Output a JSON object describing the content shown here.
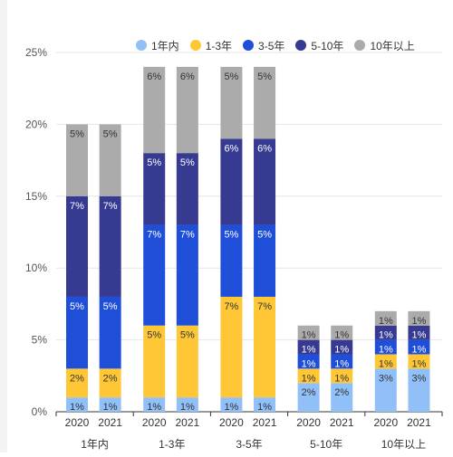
{
  "chart_data": {
    "type": "bar",
    "stacked": true,
    "groups": [
      {
        "label": "1年内",
        "years": [
          "2020",
          "2021"
        ]
      },
      {
        "label": "1-3年",
        "years": [
          "2020",
          "2021"
        ]
      },
      {
        "label": "3-5年",
        "years": [
          "2020",
          "2021"
        ]
      },
      {
        "label": "5-10年",
        "years": [
          "2020",
          "2021"
        ]
      },
      {
        "label": "10年以上",
        "years": [
          "2020",
          "2021"
        ]
      }
    ],
    "series": [
      {
        "name": "1年内",
        "color": "#91bff8",
        "values": [
          1,
          1,
          1,
          1,
          1,
          1,
          2,
          2,
          3,
          3
        ],
        "labels": [
          "1%",
          "1%",
          "1%",
          "1%",
          "1%",
          "1%",
          "2%",
          "2%",
          "3%",
          "3%"
        ],
        "label_color": "#333333"
      },
      {
        "name": "1-3年",
        "color": "#ffc736",
        "values": [
          2,
          2,
          5,
          5,
          7,
          7,
          1,
          1,
          1,
          1
        ],
        "labels": [
          "2%",
          "2%",
          "5%",
          "5%",
          "7%",
          "7%",
          "1%",
          "1%",
          "1%",
          "1%"
        ],
        "label_color": "#333333"
      },
      {
        "name": "3-5年",
        "color": "#1f4fd9",
        "values": [
          5,
          5,
          7,
          7,
          5,
          5,
          1,
          1,
          1,
          1
        ],
        "labels": [
          "5%",
          "5%",
          "7%",
          "7%",
          "5%",
          "5%",
          "1%",
          "1%",
          "1%",
          "1%"
        ],
        "label_color": "#ffffff"
      },
      {
        "name": "5-10年",
        "color": "#363a91",
        "values": [
          7,
          7,
          5,
          5,
          6,
          6,
          1,
          1,
          1,
          1
        ],
        "labels": [
          "7%",
          "7%",
          "5%",
          "5%",
          "6%",
          "6%",
          "1%",
          "1%",
          "1%",
          "1%"
        ],
        "label_color": "#ffffff"
      },
      {
        "name": "10年以上",
        "color": "#ababab",
        "values": [
          5,
          5,
          6,
          6,
          5,
          5,
          1,
          1,
          1,
          1
        ],
        "labels": [
          "5%",
          "5%",
          "6%",
          "6%",
          "5%",
          "5%",
          "1%",
          "1%",
          "1%",
          "1%"
        ],
        "label_color": "#333333"
      }
    ],
    "y_ticks": [
      "0%",
      "5%",
      "10%",
      "15%",
      "20%",
      "25%"
    ],
    "ylim": [
      0,
      25
    ],
    "legend_position": "top-right",
    "grid": true
  }
}
